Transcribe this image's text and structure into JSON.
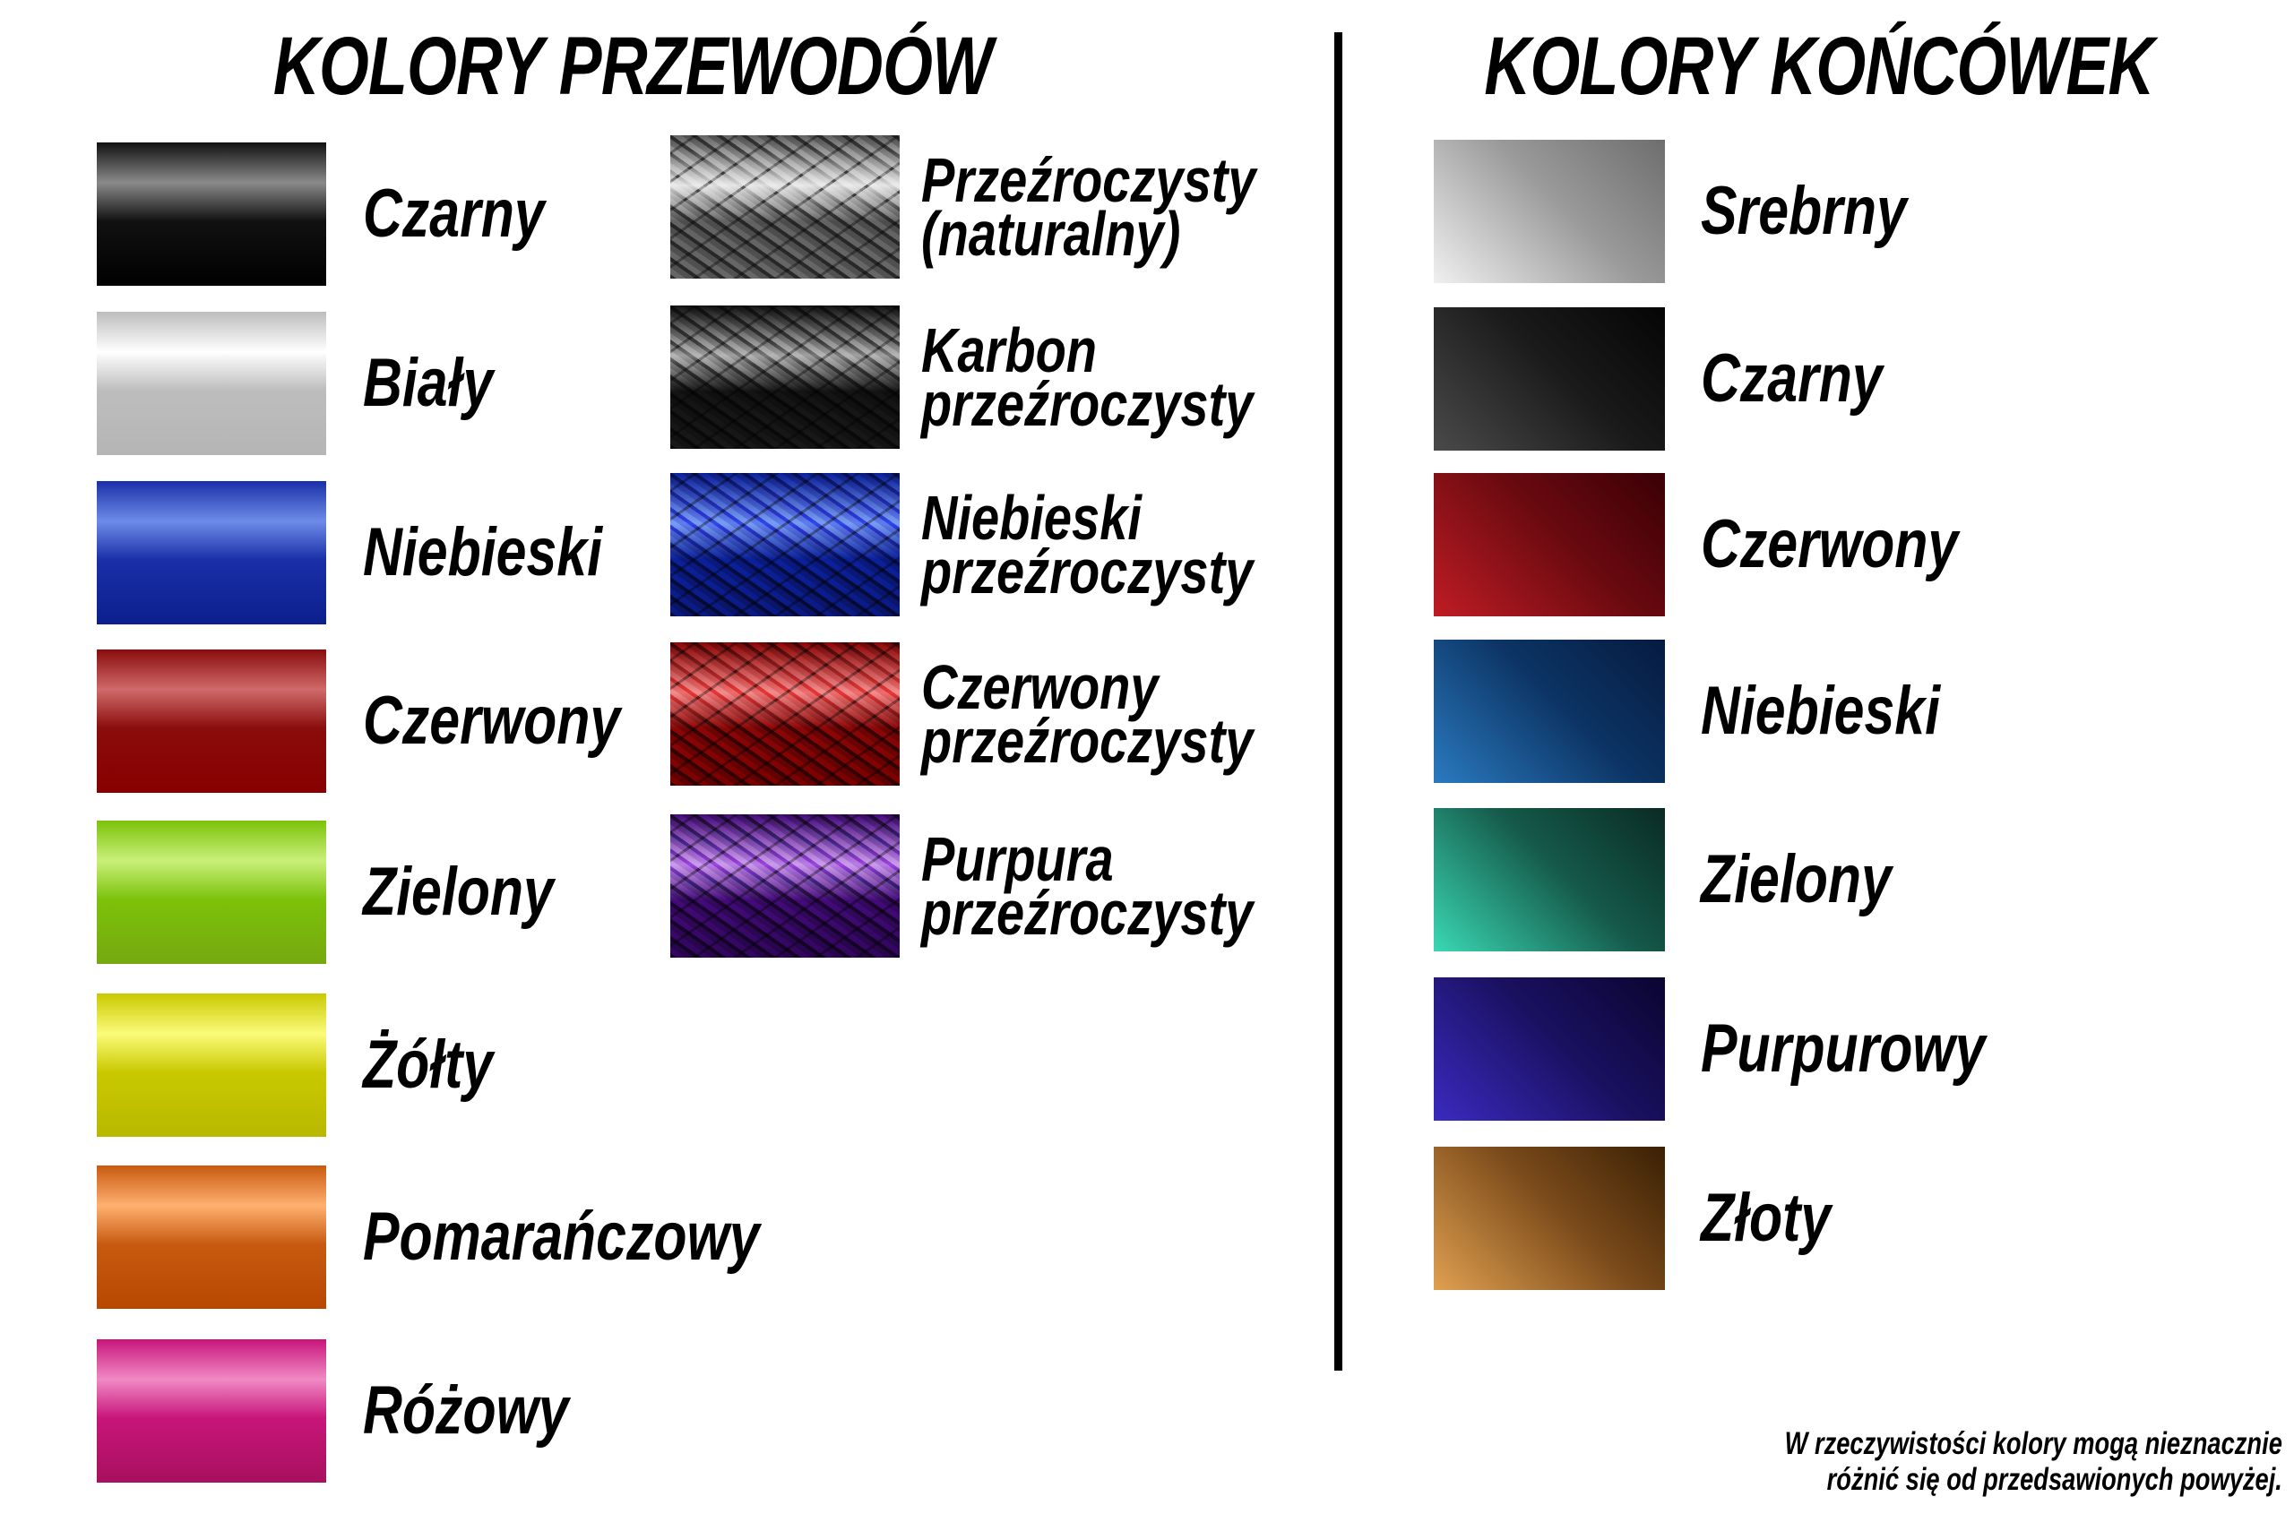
{
  "wires_title": "KOLORY PRZEWODÓW",
  "tips_title": "KOLORY KOŃCÓWEK",
  "wires_solid": [
    {
      "label": "Czarny",
      "colors": [
        "#111111",
        "#8a8a8a",
        "#000000"
      ]
    },
    {
      "label": "Biały",
      "colors": [
        "#bdbdbd",
        "#ffffff",
        "#b5b5b5"
      ]
    },
    {
      "label": "Niebieski",
      "colors": [
        "#1a2fa8",
        "#6d8ce8",
        "#0b1f8e"
      ]
    },
    {
      "label": "Czerwony",
      "colors": [
        "#8a0c0c",
        "#d06a6a",
        "#880000"
      ]
    },
    {
      "label": "Zielony",
      "colors": [
        "#7cc20a",
        "#c9f07a",
        "#76a80e"
      ]
    },
    {
      "label": "Żółty",
      "colors": [
        "#c9c900",
        "#fbfb7a",
        "#b8b800"
      ]
    },
    {
      "label": "Pomarańczowy",
      "colors": [
        "#c85a10",
        "#ffb070",
        "#b84800"
      ]
    },
    {
      "label": "Różowy",
      "colors": [
        "#c8157a",
        "#f08ac4",
        "#a8105e"
      ]
    }
  ],
  "wires_braided": [
    {
      "line1": "Przeźroczysty",
      "line2": "(naturalny)",
      "colors": [
        "#555555",
        "#e8e8e8",
        "#5a5a5a"
      ]
    },
    {
      "line1": "Karbon",
      "line2": "przeźroczysty",
      "colors": [
        "#111111",
        "#a8a8a8",
        "#151515"
      ]
    },
    {
      "line1": "Niebieski",
      "line2": "przeźroczysty",
      "colors": [
        "#0a1d8a",
        "#6a8af0",
        "#0a1670"
      ]
    },
    {
      "line1": "Czerwony",
      "line2": "przeźroczysty",
      "colors": [
        "#7a0505",
        "#f07a7a",
        "#6a0000"
      ]
    },
    {
      "line1": "Purpura",
      "line2": "przeźroczysty",
      "colors": [
        "#3a0a6a",
        "#c08ae8",
        "#2a0550"
      ]
    }
  ],
  "tips": [
    {
      "label": "Srebrny",
      "colors": [
        "#6e6e6e",
        "#9a9a9a",
        "#f0f0f0"
      ]
    },
    {
      "label": "Czarny",
      "colors": [
        "#050505",
        "#1a1a1a",
        "#4a4a4a"
      ]
    },
    {
      "label": "Czerwony",
      "colors": [
        "#3a0005",
        "#6a0a10",
        "#c01c24"
      ]
    },
    {
      "label": "Niebieski",
      "colors": [
        "#061a40",
        "#0c3464",
        "#2a7ac0"
      ]
    },
    {
      "label": "Zielony",
      "colors": [
        "#0a2a24",
        "#155a4a",
        "#3ad8b4"
      ]
    },
    {
      "label": "Purpurowy",
      "colors": [
        "#0a0530",
        "#1a1060",
        "#3a2ac0"
      ]
    },
    {
      "label": "Złoty",
      "colors": [
        "#3a2005",
        "#7a4a1a",
        "#e0a050"
      ]
    }
  ],
  "note": {
    "line1": "W rzeczywistości kolory mogą nieznacznie",
    "line2": "różnić się od przedsawionych powyżej."
  }
}
